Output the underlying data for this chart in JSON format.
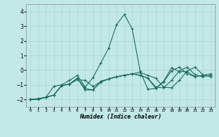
{
  "xlabel": "Humidex (Indice chaleur)",
  "background_color": "#c2e8e8",
  "grid_color": "#aad4d4",
  "line_color": "#1a6b5a",
  "xlim": [
    -0.5,
    23.5
  ],
  "ylim": [
    -2.5,
    4.5
  ],
  "yticks": [
    -2,
    -1,
    0,
    1,
    2,
    3,
    4
  ],
  "xticks": [
    0,
    1,
    2,
    3,
    4,
    5,
    6,
    7,
    8,
    9,
    10,
    11,
    12,
    13,
    14,
    15,
    16,
    17,
    18,
    19,
    20,
    21,
    22,
    23
  ],
  "series": {
    "line1_x": [
      0,
      1,
      2,
      3,
      4,
      5,
      6,
      7,
      8,
      9,
      10,
      11,
      12,
      13,
      14,
      15,
      16,
      17,
      18,
      19,
      20,
      21
    ],
    "line1_y": [
      -2.0,
      -2.0,
      -1.85,
      -1.1,
      -1.0,
      -0.7,
      -0.35,
      -1.15,
      -0.5,
      0.5,
      1.5,
      3.1,
      3.8,
      2.8,
      -0.05,
      -1.3,
      -1.25,
      -0.75,
      0.15,
      -0.1,
      -0.1,
      -0.45
    ],
    "line2_x": [
      0,
      1,
      2,
      3,
      4,
      5,
      6,
      7,
      8,
      9,
      10,
      11,
      12,
      13,
      14,
      15,
      16,
      17,
      18,
      19,
      20,
      21,
      22,
      23
    ],
    "line2_y": [
      -2.0,
      -1.95,
      -1.85,
      -1.7,
      -1.05,
      -0.95,
      -0.65,
      -0.7,
      -1.1,
      -0.8,
      -0.6,
      -0.45,
      -0.35,
      -0.25,
      -0.15,
      -0.35,
      -0.55,
      -1.15,
      -1.2,
      -0.7,
      -0.05,
      0.2,
      -0.3,
      -0.45
    ],
    "line3_x": [
      0,
      1,
      2,
      3,
      4,
      5,
      6,
      7,
      8,
      9,
      10,
      11,
      12,
      13,
      14,
      15,
      16,
      17,
      18,
      19,
      20,
      21,
      22,
      23
    ],
    "line3_y": [
      -2.0,
      -1.95,
      -1.85,
      -1.7,
      -1.05,
      -0.95,
      -0.55,
      -1.25,
      -1.35,
      -0.8,
      -0.6,
      -0.45,
      -0.35,
      -0.25,
      -0.35,
      -0.55,
      -1.15,
      -1.2,
      -0.7,
      -0.05,
      0.2,
      -0.3,
      -0.45,
      -0.35
    ],
    "line4_x": [
      0,
      1,
      2,
      3,
      4,
      5,
      6,
      7,
      8,
      9,
      10,
      11,
      12,
      13,
      14,
      15,
      16,
      17,
      18,
      19,
      20,
      21,
      22,
      23
    ],
    "line4_y": [
      -2.0,
      -1.95,
      -1.85,
      -1.7,
      -1.05,
      -0.95,
      -0.55,
      -1.35,
      -1.35,
      -0.75,
      -0.6,
      -0.45,
      -0.35,
      -0.25,
      -0.35,
      -0.55,
      -1.25,
      -0.8,
      -0.05,
      0.2,
      -0.25,
      -0.45,
      -0.35,
      -0.25
    ]
  }
}
